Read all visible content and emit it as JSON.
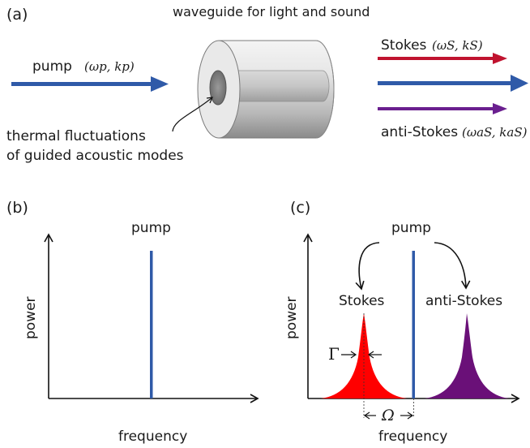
{
  "panel_a": {
    "label": "(a)",
    "title": "waveguide for light and sound",
    "pump_label": "pump",
    "pump_math": "(ωp, kp)",
    "stokes_label": "Stokes",
    "stokes_math": "(ωS, kS)",
    "antistokes_label": "anti-Stokes",
    "antistokes_math": "(ωaS, kaS)",
    "annotation_line1": "thermal fluctuations",
    "annotation_line2": "of guided acoustic modes",
    "colors": {
      "pump": "#2f5aa8",
      "stokes": "#c0132f",
      "antistokes": "#6a1f8f"
    }
  },
  "panel_b": {
    "label": "(b)",
    "pump_label": "pump",
    "ylabel": "power",
    "xlabel": "frequency"
  },
  "panel_c": {
    "label": "(c)",
    "pump_label": "pump",
    "stokes_label": "Stokes",
    "antistokes_label": "anti-Stokes",
    "ylabel": "power",
    "xlabel": "frequency",
    "gamma_symbol": "Γ",
    "omega_symbol": "Ω",
    "colors": {
      "pump": "#2f5aa8",
      "stokes": "#ff0000",
      "antistokes": "#6a1078"
    }
  }
}
